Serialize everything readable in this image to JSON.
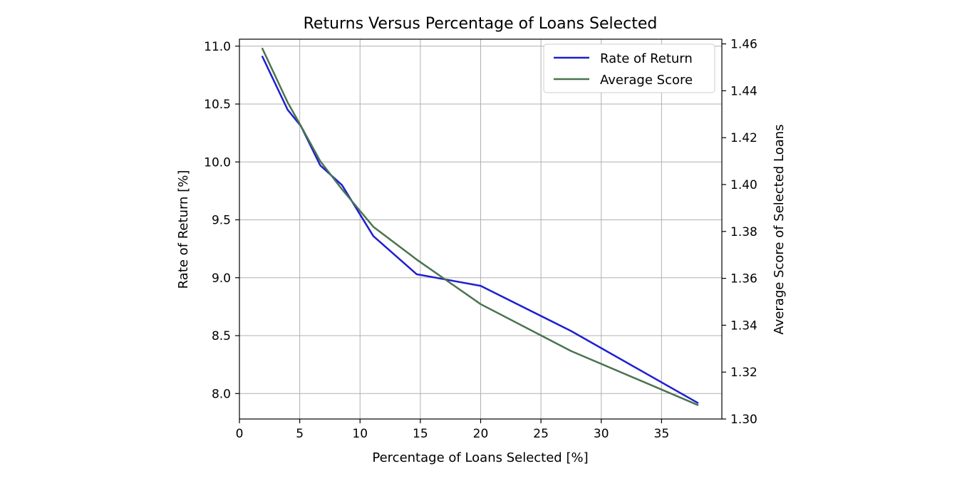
{
  "chart_data": {
    "type": "line",
    "title": "Returns Versus Percentage of Loans Selected",
    "xlabel": "Percentage of Loans Selected [%]",
    "ylabel": "Rate of Return [%]",
    "ylabel_right": "Average Score of Selected Loans",
    "xlim": [
      0,
      40
    ],
    "ylim": [
      7.78,
      11.06
    ],
    "ylim_right": [
      1.3,
      1.462
    ],
    "xticks": [
      0,
      5,
      10,
      15,
      20,
      25,
      30,
      35
    ],
    "yticks": [
      8.0,
      8.5,
      9.0,
      9.5,
      10.0,
      10.5,
      11.0
    ],
    "yticks_right": [
      1.3,
      1.32,
      1.34,
      1.36,
      1.38,
      1.4,
      1.42,
      1.44,
      1.46
    ],
    "grid": true,
    "legend_position": "top-right",
    "series": [
      {
        "name": "Rate of Return",
        "axis": "left",
        "color": "#1f1fd2",
        "x": [
          1.9,
          4.0,
          5.1,
          6.7,
          8.5,
          11.1,
          14.7,
          20.0,
          27.5,
          38.0
        ],
        "y": [
          10.91,
          10.45,
          10.31,
          9.97,
          9.8,
          9.36,
          9.03,
          8.93,
          8.54,
          7.92
        ]
      },
      {
        "name": "Average Score",
        "axis": "right",
        "color": "#4a7450",
        "x": [
          1.9,
          4.0,
          5.1,
          6.7,
          8.5,
          11.1,
          14.7,
          20.0,
          27.5,
          38.0
        ],
        "y": [
          1.458,
          1.435,
          1.425,
          1.41,
          1.398,
          1.382,
          1.368,
          1.349,
          1.329,
          1.306
        ]
      }
    ]
  }
}
